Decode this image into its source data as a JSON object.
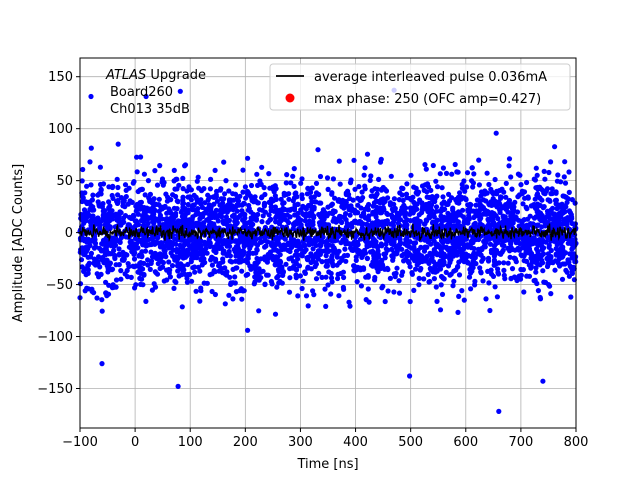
{
  "chart_data": {
    "type": "scatter",
    "title": "",
    "xlabel": "Time [ns]",
    "ylabel": "Amplitude [ADC Counts]",
    "xlim": [
      -100,
      800
    ],
    "ylim": [
      -188,
      168
    ],
    "grid": true,
    "xticks": [
      -100,
      0,
      100,
      200,
      300,
      400,
      500,
      600,
      700,
      800
    ],
    "yticks": [
      -150,
      -100,
      -50,
      0,
      50,
      100,
      150
    ],
    "annotation": {
      "prefix": "ATLAS",
      "suffix": " Upgrade",
      "line2": "Board260",
      "line3": "Ch013 35dB"
    },
    "legend": {
      "placement": "upper right",
      "entries": [
        {
          "label": "average interleaved pulse 0.036mA",
          "marker": "line",
          "color": "#000000"
        },
        {
          "label": "max phase: 250 (OFC amp=0.427)",
          "marker": "dot",
          "color": "#ff0000"
        }
      ]
    },
    "series": [
      {
        "name": "samples",
        "color": "#0000ff",
        "description_level": "dense noise band roughly within ±60 ADC counts over the full time range",
        "x_range": [
          -100,
          800
        ],
        "y_center": 0,
        "typical_spread": 25,
        "outliers": [
          {
            "x": 78,
            "y": -148
          },
          {
            "x": 660,
            "y": -172
          },
          {
            "x": 740,
            "y": -143
          },
          {
            "x": 498,
            "y": -138
          },
          {
            "x": -60,
            "y": -126
          },
          {
            "x": -80,
            "y": 131
          },
          {
            "x": 82,
            "y": 136
          },
          {
            "x": 20,
            "y": 131
          },
          {
            "x": 470,
            "y": 137
          }
        ]
      },
      {
        "name": "average interleaved pulse 0.036mA",
        "color": "#000000",
        "y_center": 0,
        "typical_spread": 3
      }
    ]
  }
}
